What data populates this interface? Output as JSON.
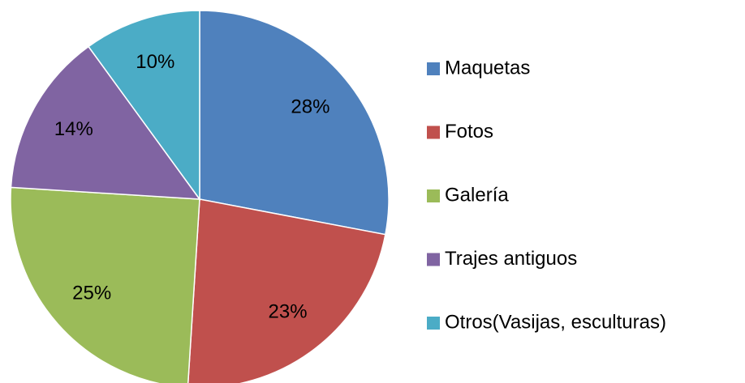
{
  "chart_data": {
    "type": "pie",
    "categories": [
      "Maquetas",
      "Fotos",
      "Galería",
      "Trajes antiguos",
      "Otros(Vasijas, esculturas)"
    ],
    "values": [
      28,
      23,
      25,
      14,
      10
    ],
    "value_labels": [
      "28%",
      "23%",
      "25%",
      "14%",
      "10%"
    ],
    "colors": [
      "#4f81bd",
      "#c0504d",
      "#9bbb59",
      "#8064a2",
      "#4bacc6"
    ],
    "legend": "right"
  }
}
